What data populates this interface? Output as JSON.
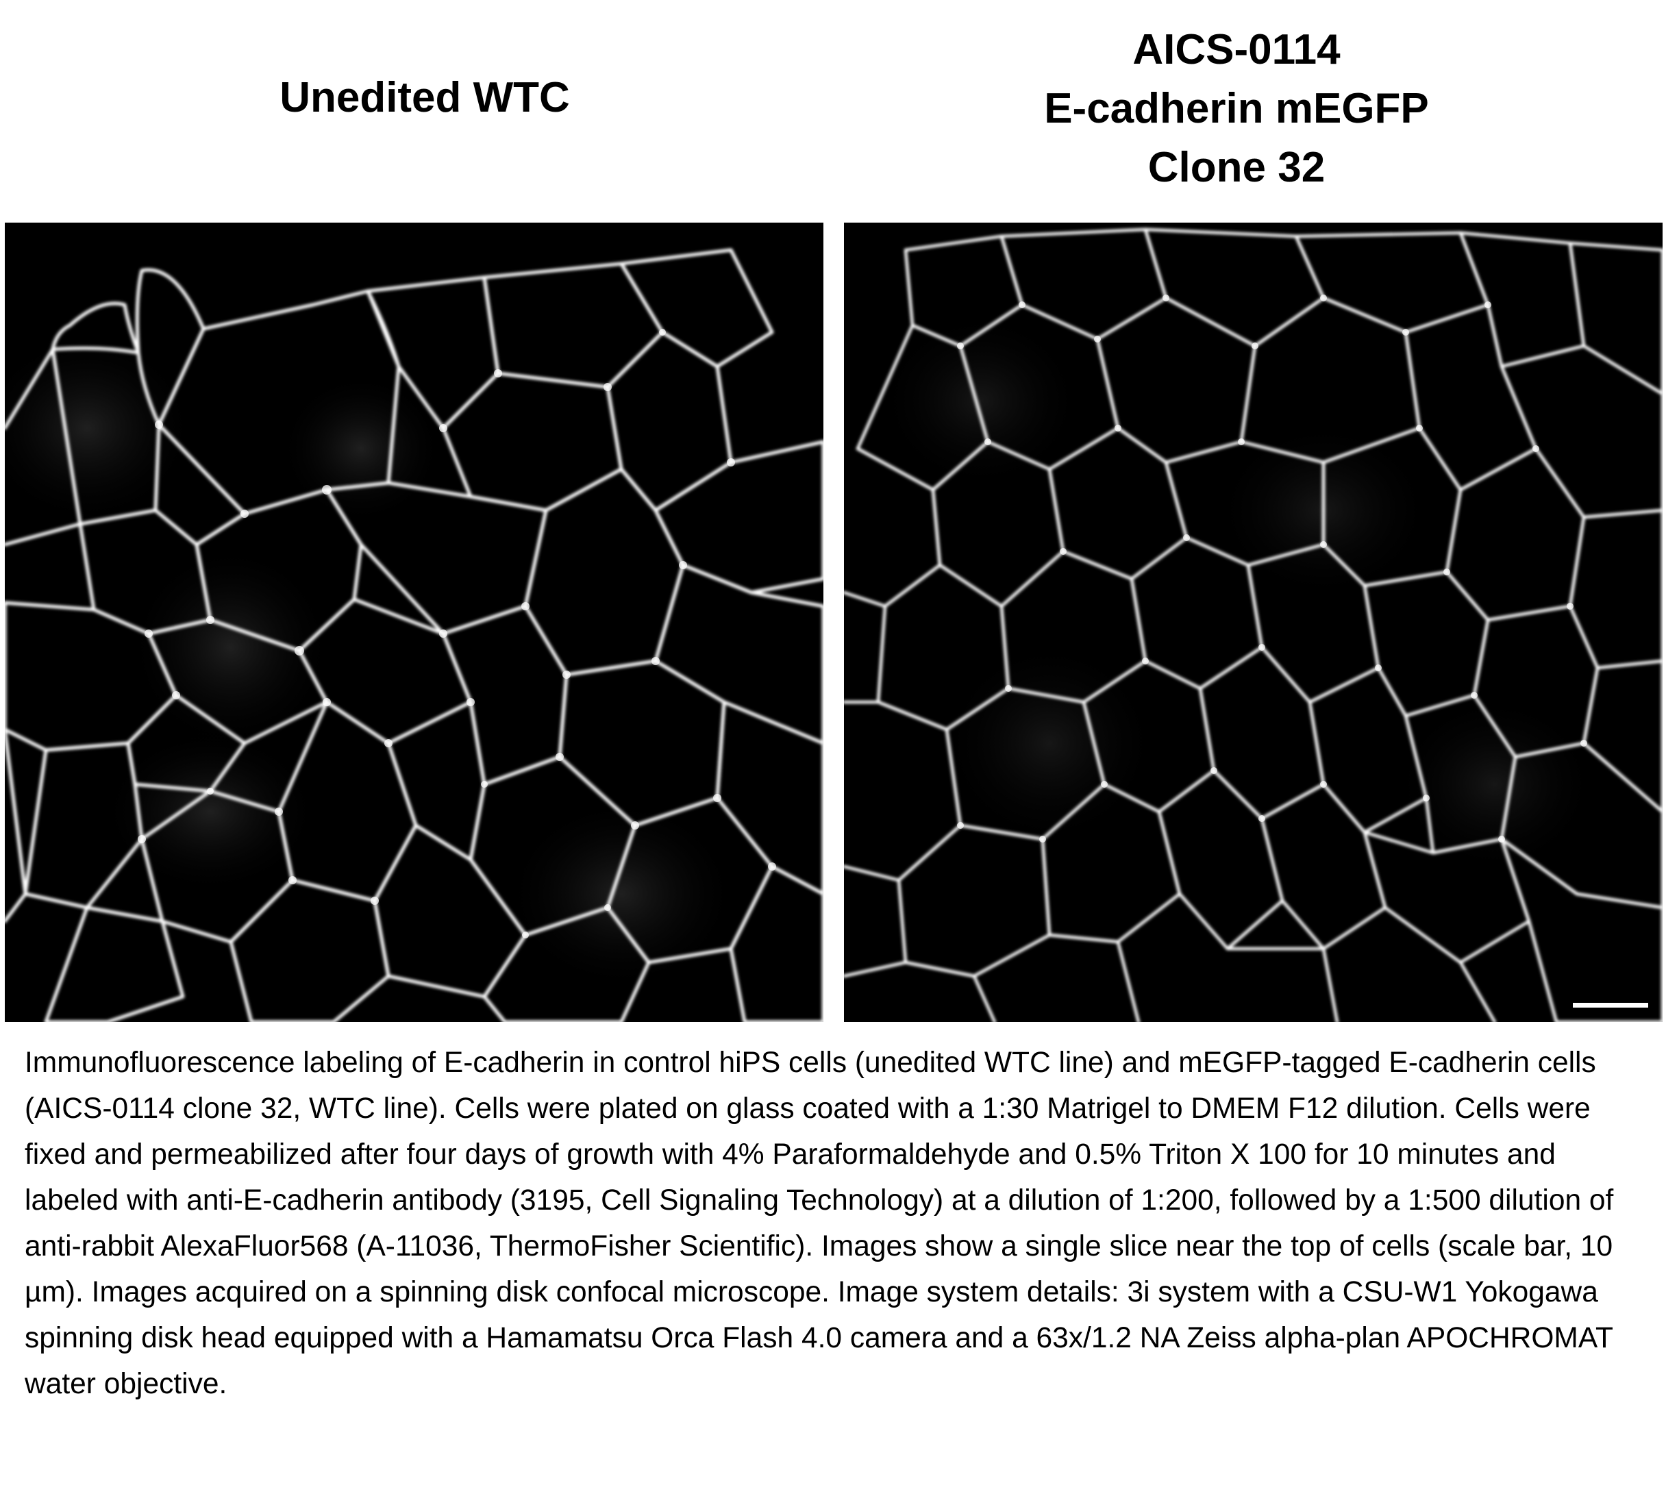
{
  "panels": {
    "left": {
      "title": "Unedited WTC"
    },
    "right": {
      "title_lines": [
        "AICS-0114",
        "E-cadherin mEGFP",
        "Clone 32"
      ]
    }
  },
  "colors": {
    "background": "#ffffff",
    "image_background": "#000000",
    "membrane": "#ffffff"
  },
  "caption": "Immunofluorescence labeling of E-cadherin in control hiPS cells (unedited WTC line) and mEGFP-tagged E-cadherin cells (AICS-0114 clone 32, WTC line).  Cells were plated on glass coated with a 1:30 Matrigel to DMEM F12 dilution. Cells were fixed and permeabilized after four days of growth with 4% Paraformaldehyde and 0.5% Triton X 100 for 10 minutes and labeled with anti-E-cadherin antibody (3195, Cell Signaling Technology) at a dilution of 1:200, followed by a 1:500 dilution of anti-rabbit AlexaFluor568 (A-11036, ThermoFisher Scientific). Images show a single slice near the top of cells (scale bar, 10 µm). Images acquired on a spinning disk confocal microscope. Image system details: 3i system with a CSU-W1 Yokogawa spinning disk head equipped with a Hamamatsu Orca Flash 4.0 camera and a 63x/1.2 NA Zeiss alpha-plan APOCHROMAT water objective."
}
